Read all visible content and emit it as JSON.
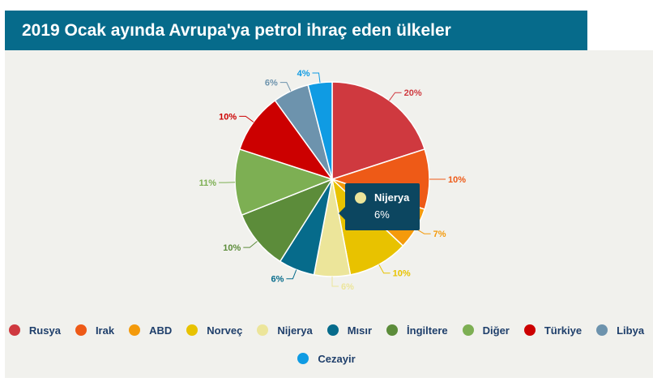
{
  "title": "2019 Ocak ayında Avrupa'ya petrol ihraç eden ülkeler",
  "tooltip": {
    "name": "Nijerya",
    "value": "6%",
    "color": "#ece59a"
  },
  "chart_data": {
    "type": "pie",
    "title": "2019 Ocak ayında Avrupa'ya petrol ihraç eden ülkeler",
    "unit": "%",
    "start_angle_deg": 0,
    "slices": [
      {
        "name": "Rusya",
        "value": 20,
        "color": "#cf393f",
        "label": "20%"
      },
      {
        "name": "Irak",
        "value": 10,
        "color": "#ee5a17",
        "label": "10%"
      },
      {
        "name": "ABD",
        "value": 7,
        "color": "#f49a0b",
        "label": "7%"
      },
      {
        "name": "Norveç",
        "value": 10,
        "color": "#e8c200",
        "label": "10%"
      },
      {
        "name": "Nijerya",
        "value": 6,
        "color": "#ece59a",
        "label": "6%"
      },
      {
        "name": "Mısır",
        "value": 6,
        "color": "#066b8b",
        "label": "6%"
      },
      {
        "name": "İngiltere",
        "value": 10,
        "color": "#5c8c3a",
        "label": "10%"
      },
      {
        "name": "Diğer",
        "value": 11,
        "color": "#7daf53",
        "label": "11%"
      },
      {
        "name": "Türkiye",
        "value": 10,
        "color": "#cc0000",
        "label": "10%"
      },
      {
        "name": "Libya",
        "value": 6,
        "color": "#6d93ad",
        "label": "6%"
      },
      {
        "name": "Cezayir",
        "value": 4,
        "color": "#0f9be3",
        "label": "4%"
      }
    ],
    "legend_position": "bottom"
  }
}
